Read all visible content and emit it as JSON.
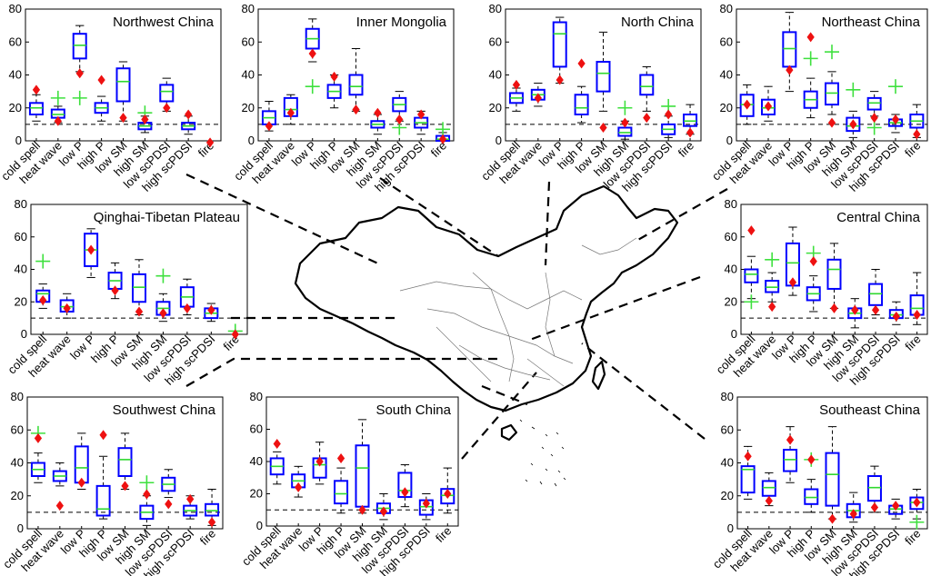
{
  "chart_data": {
    "type": "box",
    "common": {
      "categories": [
        "cold spell",
        "heat wave",
        "low P",
        "high P",
        "low SM",
        "high SM",
        "low scPDSI",
        "high scPDSI",
        "fire"
      ],
      "ylim": [
        0,
        80
      ],
      "yticks": [
        0,
        20,
        40,
        60,
        80
      ],
      "reference_line_y": 10,
      "colors": {
        "box": "#0000ff",
        "median": "#2fd82f",
        "green_marker": "#3ee03e",
        "red_marker": "#ee1111",
        "whisker": "#000000"
      }
    },
    "panels": [
      {
        "title": "Northwest China",
        "categories_override": null,
        "boxes": [
          {
            "q1": 16,
            "med": 20,
            "q3": 23,
            "lo": 12,
            "hi": 28,
            "green": null,
            "red": 31
          },
          {
            "q1": 14,
            "med": 16,
            "q3": 19,
            "lo": 11,
            "hi": 21,
            "green": 26,
            "red": 12
          },
          {
            "q1": 50,
            "med": 58,
            "q3": 65,
            "lo": 42,
            "hi": 70,
            "green": 26,
            "red": 41
          },
          {
            "q1": 17,
            "med": 20,
            "q3": 23,
            "lo": 12,
            "hi": 27,
            "green": null,
            "red": 37
          },
          {
            "q1": 24,
            "med": 36,
            "q3": 44,
            "lo": 12,
            "hi": 48,
            "green": null,
            "red": 14
          },
          {
            "q1": 7,
            "med": 9,
            "q3": 11,
            "lo": 5,
            "hi": 15,
            "green": 17,
            "red": 13
          },
          {
            "q1": 24,
            "med": 30,
            "q3": 34,
            "lo": 18,
            "hi": 38,
            "green": null,
            "red": 20
          },
          {
            "q1": 7,
            "med": 9,
            "q3": 11,
            "lo": 4,
            "hi": 15,
            "green": null,
            "red": 16
          },
          {
            "q1": null,
            "med": null,
            "q3": null,
            "lo": null,
            "hi": null,
            "green": null,
            "red": -1
          }
        ]
      },
      {
        "title": "Inner Mongolia",
        "boxes": [
          {
            "q1": 10,
            "med": 14,
            "q3": 18,
            "lo": 6,
            "hi": 24,
            "green": null,
            "red": 9
          },
          {
            "q1": 15,
            "med": 19,
            "q3": 26,
            "lo": 10,
            "hi": 28,
            "green": null,
            "red": 17
          },
          {
            "q1": 56,
            "med": 62,
            "q3": 68,
            "lo": 48,
            "hi": 74,
            "green": 33,
            "red": 53
          },
          {
            "q1": 26,
            "med": 30,
            "q3": 34,
            "lo": 20,
            "hi": 40,
            "green": null,
            "red": 39
          },
          {
            "q1": 28,
            "med": 33,
            "q3": 40,
            "lo": 18,
            "hi": 56,
            "green": null,
            "red": 19
          },
          {
            "q1": 8,
            "med": 10,
            "q3": 12,
            "lo": 4,
            "hi": 16,
            "green": null,
            "red": 17
          },
          {
            "q1": 18,
            "med": 22,
            "q3": 26,
            "lo": 12,
            "hi": 30,
            "green": 8,
            "red": 13
          },
          {
            "q1": 8,
            "med": 11,
            "q3": 14,
            "lo": 4,
            "hi": 18,
            "green": null,
            "red": 16
          },
          {
            "q1": 0,
            "med": 1,
            "q3": 3,
            "lo": 0,
            "hi": 5,
            "green": 7,
            "red": 1
          }
        ]
      },
      {
        "title": "North China",
        "boxes": [
          {
            "q1": 23,
            "med": 26,
            "q3": 29,
            "lo": 18,
            "hi": 32,
            "green": null,
            "red": 34
          },
          {
            "q1": 25,
            "med": 28,
            "q3": 31,
            "lo": 21,
            "hi": 35,
            "green": null,
            "red": 26
          },
          {
            "q1": 45,
            "med": 65,
            "q3": 72,
            "lo": 35,
            "hi": 75,
            "green": null,
            "red": 37
          },
          {
            "q1": 16,
            "med": 20,
            "q3": 28,
            "lo": 11,
            "hi": 33,
            "green": null,
            "red": 47
          },
          {
            "q1": 30,
            "med": 41,
            "q3": 48,
            "lo": 18,
            "hi": 66,
            "green": null,
            "red": 8
          },
          {
            "q1": 3,
            "med": 5,
            "q3": 8,
            "lo": 1,
            "hi": 12,
            "green": 20,
            "red": 11
          },
          {
            "q1": 28,
            "med": 33,
            "q3": 40,
            "lo": 18,
            "hi": 45,
            "green": null,
            "red": 14
          },
          {
            "q1": 4,
            "med": 7,
            "q3": 10,
            "lo": 2,
            "hi": 15,
            "green": 21,
            "red": 16
          },
          {
            "q1": 9,
            "med": 12,
            "q3": 16,
            "lo": 4,
            "hi": 22,
            "green": null,
            "red": 5
          }
        ]
      },
      {
        "title": "Northeast China",
        "boxes": [
          {
            "q1": 15,
            "med": 22,
            "q3": 28,
            "lo": 10,
            "hi": 34,
            "green": null,
            "red": 22
          },
          {
            "q1": 16,
            "med": 20,
            "q3": 25,
            "lo": 12,
            "hi": 33,
            "green": null,
            "red": 21
          },
          {
            "q1": 45,
            "med": 56,
            "q3": 66,
            "lo": 30,
            "hi": 78,
            "green": null,
            "red": 43
          },
          {
            "q1": 20,
            "med": 25,
            "q3": 30,
            "lo": 14,
            "hi": 38,
            "green": 50,
            "red": 63
          },
          {
            "q1": 22,
            "med": 29,
            "q3": 35,
            "lo": 16,
            "hi": 42,
            "green": 54,
            "red": 11
          },
          {
            "q1": 6,
            "med": 9,
            "q3": 14,
            "lo": 2,
            "hi": 18,
            "green": 31,
            "red": 10
          },
          {
            "q1": 19,
            "med": 23,
            "q3": 26,
            "lo": 15,
            "hi": 30,
            "green": 8,
            "red": 14
          },
          {
            "q1": 9,
            "med": 11,
            "q3": 13,
            "lo": 5,
            "hi": 16,
            "green": 33,
            "red": 13
          },
          {
            "q1": 8,
            "med": 12,
            "q3": 16,
            "lo": 2,
            "hi": 22,
            "green": null,
            "red": 4
          }
        ]
      },
      {
        "title": "Qinghai-Tibetan Plateau",
        "boxes": [
          {
            "q1": 20,
            "med": 25,
            "q3": 27,
            "lo": 16,
            "hi": 31,
            "green": 45,
            "red": 21
          },
          {
            "q1": 14,
            "med": 17,
            "q3": 21,
            "lo": 10,
            "hi": 25,
            "green": null,
            "red": 16
          },
          {
            "q1": 42,
            "med": 52,
            "q3": 62,
            "lo": 35,
            "hi": 65,
            "green": null,
            "red": 52
          },
          {
            "q1": 28,
            "med": 33,
            "q3": 38,
            "lo": 22,
            "hi": 44,
            "green": null,
            "red": 27
          },
          {
            "q1": 20,
            "med": 29,
            "q3": 37,
            "lo": 12,
            "hi": 46,
            "green": null,
            "red": 14
          },
          {
            "q1": 12,
            "med": 16,
            "q3": 20,
            "lo": 8,
            "hi": 25,
            "green": 36,
            "red": 13
          },
          {
            "q1": 17,
            "med": 23,
            "q3": 29,
            "lo": 12,
            "hi": 34,
            "green": null,
            "red": 16
          },
          {
            "q1": 10,
            "med": 13,
            "q3": 16,
            "lo": 8,
            "hi": 19,
            "green": null,
            "red": 15
          },
          {
            "q1": null,
            "med": null,
            "q3": null,
            "lo": null,
            "hi": null,
            "green": 2,
            "red": 0
          }
        ]
      },
      {
        "title": "Central China",
        "boxes": [
          {
            "q1": 32,
            "med": 37,
            "q3": 40,
            "lo": 22,
            "hi": 48,
            "green": 20,
            "red": 64
          },
          {
            "q1": 26,
            "med": 29,
            "q3": 33,
            "lo": 20,
            "hi": 38,
            "green": 46,
            "red": 17
          },
          {
            "q1": 30,
            "med": 44,
            "q3": 56,
            "lo": 24,
            "hi": 66,
            "green": null,
            "red": 32
          },
          {
            "q1": 21,
            "med": 25,
            "q3": 29,
            "lo": 14,
            "hi": 36,
            "green": 50,
            "red": 45
          },
          {
            "q1": 28,
            "med": 40,
            "q3": 46,
            "lo": 16,
            "hi": 56,
            "green": null,
            "red": 16
          },
          {
            "q1": 10,
            "med": 13,
            "q3": 16,
            "lo": 4,
            "hi": 22,
            "green": null,
            "red": 15
          },
          {
            "q1": 18,
            "med": 25,
            "q3": 31,
            "lo": 12,
            "hi": 40,
            "green": null,
            "red": 15
          },
          {
            "q1": 10,
            "med": 12,
            "q3": 15,
            "lo": 6,
            "hi": 20,
            "green": null,
            "red": 11
          },
          {
            "q1": 12,
            "med": 16,
            "q3": 24,
            "lo": 6,
            "hi": 38,
            "green": null,
            "red": 12
          }
        ]
      },
      {
        "title": "Southwest China",
        "boxes": [
          {
            "q1": 32,
            "med": 36,
            "q3": 40,
            "lo": 28,
            "hi": 46,
            "green": 58,
            "red": 55
          },
          {
            "q1": 29,
            "med": 32,
            "q3": 35,
            "lo": 26,
            "hi": 40,
            "green": null,
            "red": 14
          },
          {
            "q1": 28,
            "med": 37,
            "q3": 50,
            "lo": 24,
            "hi": 58,
            "green": null,
            "red": 28
          },
          {
            "q1": 8,
            "med": 12,
            "q3": 26,
            "lo": 6,
            "hi": 44,
            "green": null,
            "red": 57
          },
          {
            "q1": 32,
            "med": 42,
            "q3": 49,
            "lo": 24,
            "hi": 58,
            "green": null,
            "red": 26
          },
          {
            "q1": 6,
            "med": 10,
            "q3": 14,
            "lo": 2,
            "hi": 20,
            "green": 28,
            "red": 21
          },
          {
            "q1": 23,
            "med": 27,
            "q3": 31,
            "lo": 19,
            "hi": 36,
            "green": null,
            "red": 15
          },
          {
            "q1": 8,
            "med": 11,
            "q3": 14,
            "lo": 6,
            "hi": 20,
            "green": null,
            "red": 18
          },
          {
            "q1": 8,
            "med": 11,
            "q3": 15,
            "lo": 2,
            "hi": 24,
            "green": null,
            "red": 4
          }
        ]
      },
      {
        "title": "South China",
        "categories_override": [
          "cold spell",
          "heat wave",
          "low P",
          "high P",
          "low SM",
          "high SM",
          "low scPDSI",
          "high scPDSI",
          "fire"
        ],
        "boxes": [
          {
            "q1": 32,
            "med": 37,
            "q3": 42,
            "lo": 26,
            "hi": 46,
            "green": null,
            "red": 51
          },
          {
            "q1": 24,
            "med": 28,
            "q3": 32,
            "lo": 18,
            "hi": 37,
            "green": null,
            "red": 24
          },
          {
            "q1": 30,
            "med": 38,
            "q3": 42,
            "lo": 26,
            "hi": 52,
            "green": null,
            "red": 40
          },
          {
            "q1": 14,
            "med": 20,
            "q3": 28,
            "lo": 8,
            "hi": 36,
            "green": null,
            "red": 42
          },
          {
            "q1": 12,
            "med": 36,
            "q3": 50,
            "lo": 8,
            "hi": 66,
            "green": null,
            "red": 10
          },
          {
            "q1": 8,
            "med": 11,
            "q3": 14,
            "lo": 4,
            "hi": 20,
            "green": null,
            "red": 9
          },
          {
            "q1": 18,
            "med": 22,
            "q3": 33,
            "lo": 12,
            "hi": 38,
            "green": null,
            "red": 21
          },
          {
            "q1": 7,
            "med": 12,
            "q3": 16,
            "lo": 4,
            "hi": 20,
            "green": null,
            "red": 14
          },
          {
            "q1": 14,
            "med": 19,
            "q3": 23,
            "lo": 8,
            "hi": 36,
            "green": null,
            "red": 20
          }
        ]
      },
      {
        "title": "Southeast China",
        "boxes": [
          {
            "q1": 22,
            "med": 36,
            "q3": 38,
            "lo": 18,
            "hi": 50,
            "green": null,
            "red": 44
          },
          {
            "q1": 20,
            "med": 25,
            "q3": 29,
            "lo": 14,
            "hi": 34,
            "green": null,
            "red": 17
          },
          {
            "q1": 35,
            "med": 42,
            "q3": 48,
            "lo": 28,
            "hi": 62,
            "green": null,
            "red": 54
          },
          {
            "q1": 15,
            "med": 19,
            "q3": 24,
            "lo": 10,
            "hi": 30,
            "green": 42,
            "red": 42
          },
          {
            "q1": 14,
            "med": 33,
            "q3": 46,
            "lo": 6,
            "hi": 62,
            "green": null,
            "red": 6
          },
          {
            "q1": 7,
            "med": 11,
            "q3": 15,
            "lo": 4,
            "hi": 22,
            "green": null,
            "red": 9
          },
          {
            "q1": 17,
            "med": 25,
            "q3": 32,
            "lo": 10,
            "hi": 38,
            "green": null,
            "red": 13
          },
          {
            "q1": 9,
            "med": 12,
            "q3": 14,
            "lo": 6,
            "hi": 18,
            "green": null,
            "red": 14
          },
          {
            "q1": 12,
            "med": 16,
            "q3": 19,
            "lo": 6,
            "hi": 24,
            "green": 4,
            "red": 16
          }
        ]
      }
    ]
  }
}
